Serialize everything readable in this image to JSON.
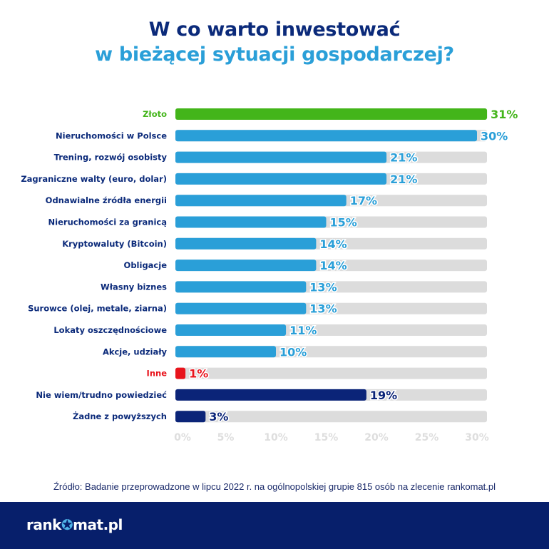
{
  "title_line1": "W co warto inwestować",
  "title_line2": "w bieżącej sytuacji gospodarczej?",
  "chart_data": {
    "type": "bar",
    "orientation": "horizontal",
    "categories": [
      "Złoto",
      "Nieruchomości w Polsce",
      "Trening, rozwój osobisty",
      "Zagraniczne walty (euro, dolar)",
      "Odnawialne źródła energii",
      "Nieruchomości za granicą",
      "Kryptowaluty (Bitcoin)",
      "Obligacje",
      "Własny biznes",
      "Surowce (olej, metale, ziarna)",
      "Lokaty oszczędnościowe",
      "Akcje, udziały",
      "Inne",
      "Nie wiem/trudno powiedzieć",
      "Żadne z powyższych"
    ],
    "values": [
      31,
      30,
      21,
      21,
      17,
      15,
      14,
      14,
      13,
      13,
      11,
      10,
      1,
      19,
      3
    ],
    "value_labels": [
      "31%",
      "30%",
      "21%",
      "21%",
      "17%",
      "15%",
      "14%",
      "14%",
      "13%",
      "13%",
      "11%",
      "10%",
      "1%",
      "19%",
      "3%"
    ],
    "colors": [
      "#43b51a",
      "#2a9fd8",
      "#2a9fd8",
      "#2a9fd8",
      "#2a9fd8",
      "#2a9fd8",
      "#2a9fd8",
      "#2a9fd8",
      "#2a9fd8",
      "#2a9fd8",
      "#2a9fd8",
      "#2a9fd8",
      "#e8141c",
      "#0b2478",
      "#0b2478"
    ],
    "label_colors": [
      "#43b51a",
      "#0b2a7a",
      "#0b2a7a",
      "#0b2a7a",
      "#0b2a7a",
      "#0b2a7a",
      "#0b2a7a",
      "#0b2a7a",
      "#0b2a7a",
      "#0b2a7a",
      "#0b2a7a",
      "#0b2a7a",
      "#e8141c",
      "#0b2a7a",
      "#0b2a7a"
    ],
    "xticks": [
      "0%",
      "5%",
      "10%",
      "15%",
      "20%",
      "25%",
      "30%"
    ],
    "xtick_values": [
      0,
      5,
      10,
      15,
      20,
      25,
      30
    ],
    "xlim": [
      0,
      31
    ],
    "unit": "%",
    "track_color": "#dcdcdc"
  },
  "source": "Źródło: Badanie przeprowadzone w lipcu 2022 r. na ogólnopolskiej grupie 815 osób na zlecenie rankomat.pl",
  "logo": {
    "part1": "rank",
    "part2": "mat.pl",
    "text": "rankomat.pl"
  }
}
